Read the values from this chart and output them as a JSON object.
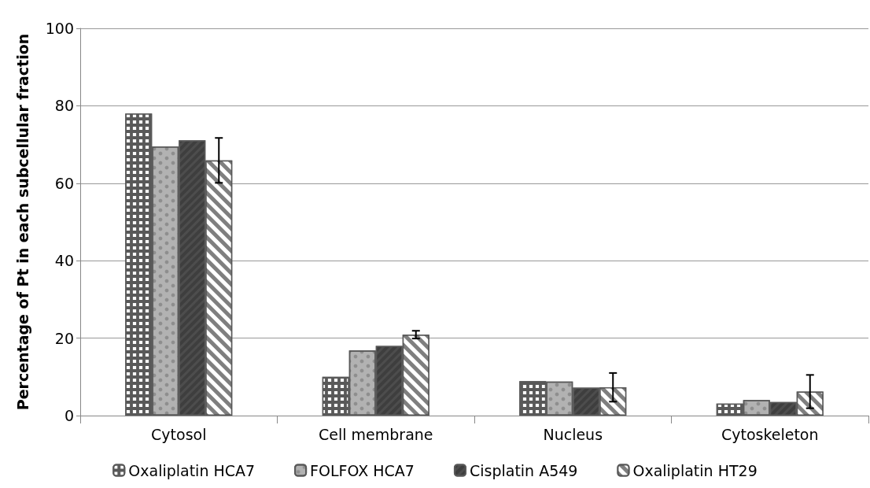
{
  "chart_data": {
    "type": "bar",
    "ylabel": "Percentage of Pt in each subcellular fraction",
    "categories": [
      "Cytosol",
      "Cell membrane",
      "Nucleus",
      "Cytoskeleton"
    ],
    "series": [
      {
        "name": "Oxaliplatin HCA7",
        "color": "#595959",
        "values": [
          78,
          10,
          8.9,
          3.1
        ]
      },
      {
        "name": "FOLFOX HCA7",
        "color": "#b2b2b2",
        "values": [
          69.5,
          16.8,
          8.8,
          4
        ]
      },
      {
        "name": "Cisplatin A549",
        "color": "#4d4d4d",
        "values": [
          71.1,
          18,
          7.2,
          3.5
        ]
      },
      {
        "name": "Oxaliplatin HT29",
        "color": "#7f7f7f",
        "values": [
          65.9,
          20.9,
          7.3,
          6.2
        ],
        "errors": [
          5.8,
          1,
          3.7,
          4.3
        ]
      }
    ],
    "ylim": [
      0,
      100
    ],
    "yticks": [
      0,
      20,
      40,
      60,
      80,
      100
    ],
    "grid": "y",
    "legend": "bottom"
  }
}
